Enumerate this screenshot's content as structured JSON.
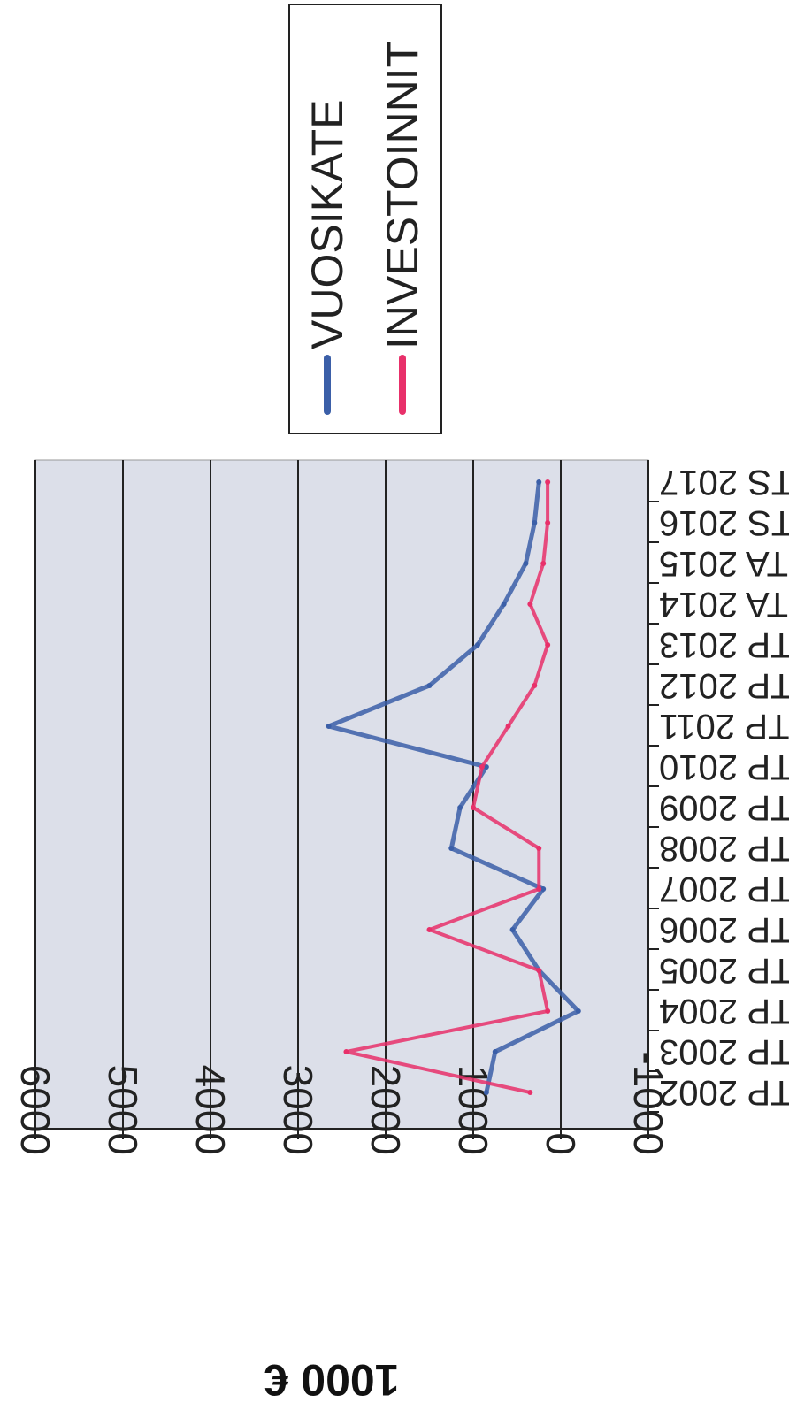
{
  "chart_data": {
    "type": "line",
    "title": "",
    "xlabel": "",
    "ylabel": "1000 €",
    "ylim": [
      -1000,
      6000
    ],
    "yticks": [
      -1000,
      0,
      1000,
      2000,
      3000,
      4000,
      5000,
      6000
    ],
    "categories": [
      "TP 2002",
      "TP 2003",
      "TP 2004",
      "TP 2005",
      "TP 2006",
      "TP 2007",
      "TP 2008",
      "TP 2009",
      "TP 2010",
      "TP 2011",
      "TP 2012",
      "TP 2013",
      "TA 2014",
      "TA 2015",
      "TS 2016",
      "TS 2017"
    ],
    "series": [
      {
        "name": "VUOSIKATE",
        "color": "#3b5fa8",
        "values": [
          850,
          750,
          -200,
          250,
          550,
          200,
          1250,
          1150,
          850,
          2650,
          1500,
          950,
          650,
          400,
          300,
          250
        ]
      },
      {
        "name": "INVESTOINNIT",
        "color": "#e8306a",
        "values": [
          350,
          2450,
          150,
          250,
          1500,
          250,
          250,
          1000,
          900,
          600,
          300,
          150,
          350,
          200,
          150,
          150
        ]
      }
    ],
    "grid": true,
    "legend": "top"
  }
}
